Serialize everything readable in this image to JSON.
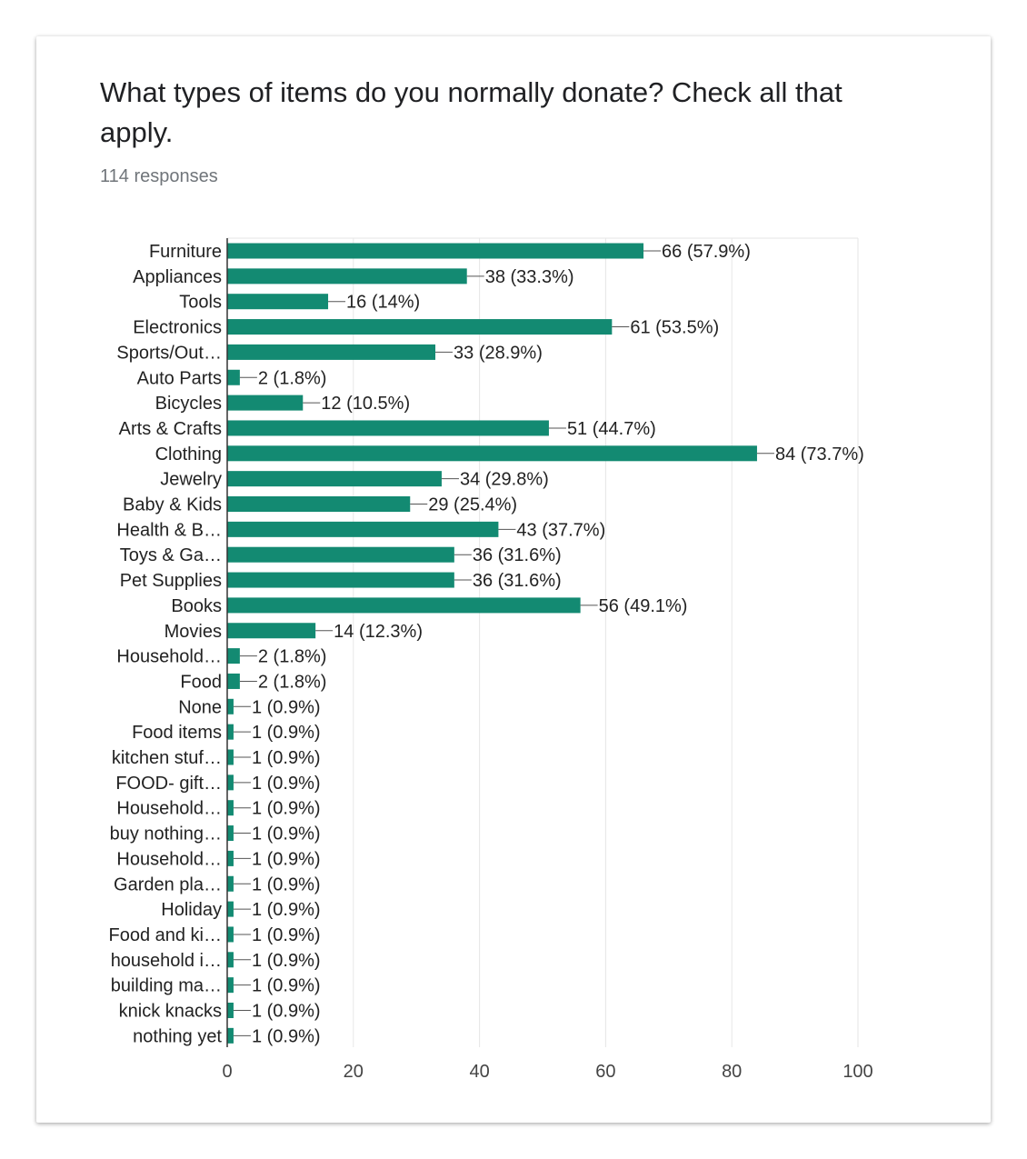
{
  "card": {
    "title": "What types of items do you normally donate? Check all that apply.",
    "responses": "114 responses"
  },
  "colors": {
    "bar": "#138a72",
    "grid": "#e6e6e6",
    "axis": "#333333"
  },
  "chart_data": {
    "type": "bar",
    "orientation": "horizontal",
    "categories": [
      "Furniture",
      "Appliances",
      "Tools",
      "Electronics",
      "Sports/Out…",
      "Auto Parts",
      "Bicycles",
      "Arts & Crafts",
      "Clothing",
      "Jewelry",
      "Baby & Kids",
      "Health & B…",
      "Toys & Ga…",
      "Pet Supplies",
      "Books",
      "Movies",
      "Household…",
      "Food",
      "None",
      "Food items",
      "kitchen stuf…",
      "FOOD- gift…",
      "Household…",
      "buy nothing…",
      "Household…",
      "Garden pla…",
      "Holiday",
      "Food and ki…",
      "household i…",
      "building ma…",
      "knick knacks",
      "nothing yet"
    ],
    "values": [
      66,
      38,
      16,
      61,
      33,
      2,
      12,
      51,
      84,
      34,
      29,
      43,
      36,
      36,
      56,
      14,
      2,
      2,
      1,
      1,
      1,
      1,
      1,
      1,
      1,
      1,
      1,
      1,
      1,
      1,
      1,
      1
    ],
    "data_labels": [
      "66 (57.9%)",
      "38 (33.3%)",
      "16 (14%)",
      "61 (53.5%)",
      "33 (28.9%)",
      "2 (1.8%)",
      "12 (10.5%)",
      "51 (44.7%)",
      "84 (73.7%)",
      "34 (29.8%)",
      "29 (25.4%)",
      "43 (37.7%)",
      "36 (31.6%)",
      "36 (31.6%)",
      "56 (49.1%)",
      "14 (12.3%)",
      "2 (1.8%)",
      "2 (1.8%)",
      "1 (0.9%)",
      "1 (0.9%)",
      "1 (0.9%)",
      "1 (0.9%)",
      "1 (0.9%)",
      "1 (0.9%)",
      "1 (0.9%)",
      "1 (0.9%)",
      "1 (0.9%)",
      "1 (0.9%)",
      "1 (0.9%)",
      "1 (0.9%)",
      "1 (0.9%)",
      "1 (0.9%)"
    ],
    "xlim": [
      0,
      100
    ],
    "xticks": [
      "0",
      "20",
      "40",
      "60",
      "80",
      "100"
    ],
    "grid": true,
    "legend": "none"
  }
}
